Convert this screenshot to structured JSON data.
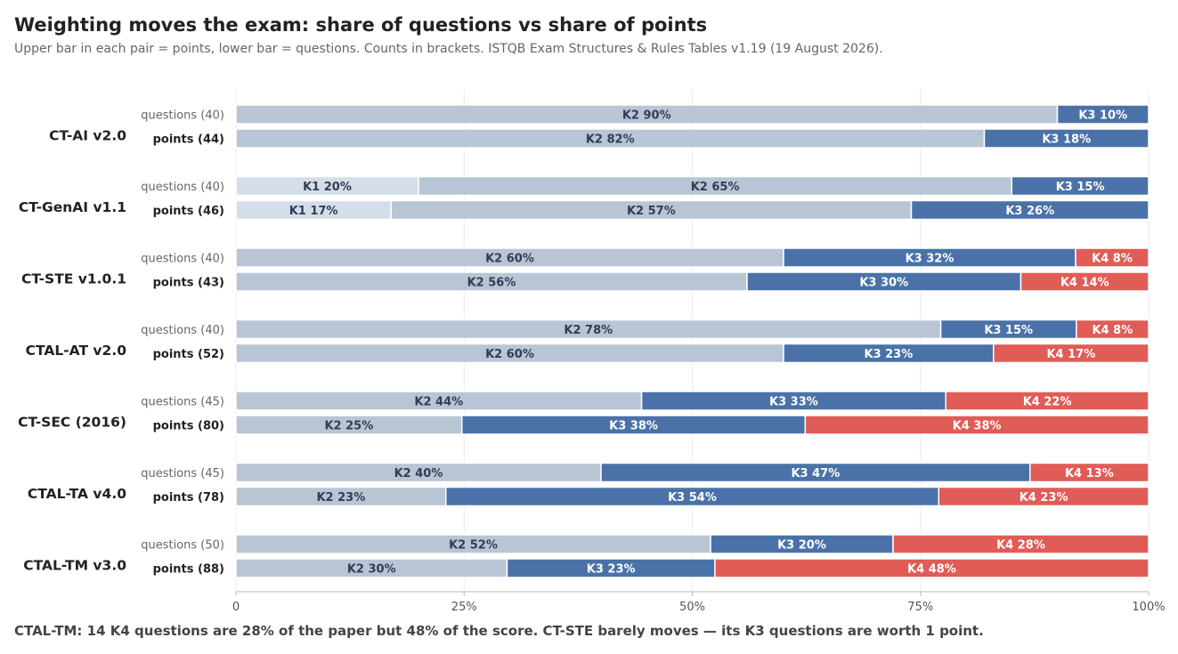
{
  "title": "Weighting moves the exam: share of questions vs share of points",
  "subtitle": "Upper bar in each pair = points, lower bar = questions. Counts in brackets. ISTQB Exam Structures & Rules Tables v1.19 (19 August 2026).",
  "footnote": "CTAL-TM: 14 K4 questions are 28% of the paper but 48% of the score. CT-STE barely moves — its K3 questions are worth 1 point.",
  "colors": {
    "K1": "#d5dde8",
    "K2": "#b8c5d4",
    "K3": "#4a72a8",
    "K4": "#e05c57"
  },
  "chart_data": {
    "type": "bar",
    "orientation": "horizontal",
    "stacked": true,
    "xlim": [
      0,
      100
    ],
    "xticks": [
      "0",
      "25%",
      "50%",
      "75%",
      "100%"
    ],
    "grid": true,
    "groups": [
      {
        "exam": "CT-AI v2.0",
        "rows": [
          {
            "label": "questions  (40)",
            "segments": [
              {
                "level": "K2",
                "value": 90
              },
              {
                "level": "K3",
                "value": 10
              }
            ]
          },
          {
            "label": "points  (44)",
            "segments": [
              {
                "level": "K2",
                "value": 82
              },
              {
                "level": "K3",
                "value": 18
              }
            ]
          }
        ]
      },
      {
        "exam": "CT-GenAI v1.1",
        "rows": [
          {
            "label": "questions  (40)",
            "segments": [
              {
                "level": "K1",
                "value": 20
              },
              {
                "level": "K2",
                "value": 65
              },
              {
                "level": "K3",
                "value": 15
              }
            ]
          },
          {
            "label": "points  (46)",
            "segments": [
              {
                "level": "K1",
                "value": 17
              },
              {
                "level": "K2",
                "value": 57
              },
              {
                "level": "K3",
                "value": 26
              }
            ]
          }
        ]
      },
      {
        "exam": "CT-STE v1.0.1",
        "rows": [
          {
            "label": "questions  (40)",
            "segments": [
              {
                "level": "K2",
                "value": 60
              },
              {
                "level": "K3",
                "value": 32
              },
              {
                "level": "K4",
                "value": 8
              }
            ]
          },
          {
            "label": "points  (43)",
            "segments": [
              {
                "level": "K2",
                "value": 56
              },
              {
                "level": "K3",
                "value": 30
              },
              {
                "level": "K4",
                "value": 14
              }
            ]
          }
        ]
      },
      {
        "exam": "CTAL-AT v2.0",
        "rows": [
          {
            "label": "questions  (40)",
            "segments": [
              {
                "level": "K2",
                "value": 78
              },
              {
                "level": "K3",
                "value": 15
              },
              {
                "level": "K4",
                "value": 8
              }
            ]
          },
          {
            "label": "points  (52)",
            "segments": [
              {
                "level": "K2",
                "value": 60
              },
              {
                "level": "K3",
                "value": 23
              },
              {
                "level": "K4",
                "value": 17
              }
            ]
          }
        ]
      },
      {
        "exam": "CT-SEC (2016)",
        "rows": [
          {
            "label": "questions  (45)",
            "segments": [
              {
                "level": "K2",
                "value": 44
              },
              {
                "level": "K3",
                "value": 33
              },
              {
                "level": "K4",
                "value": 22
              }
            ]
          },
          {
            "label": "points  (80)",
            "segments": [
              {
                "level": "K2",
                "value": 25
              },
              {
                "level": "K3",
                "value": 38
              },
              {
                "level": "K4",
                "value": 38
              }
            ]
          }
        ]
      },
      {
        "exam": "CTAL-TA v4.0",
        "rows": [
          {
            "label": "questions  (45)",
            "segments": [
              {
                "level": "K2",
                "value": 40
              },
              {
                "level": "K3",
                "value": 47
              },
              {
                "level": "K4",
                "value": 13
              }
            ]
          },
          {
            "label": "points  (78)",
            "segments": [
              {
                "level": "K2",
                "value": 23
              },
              {
                "level": "K3",
                "value": 54
              },
              {
                "level": "K4",
                "value": 23
              }
            ]
          }
        ]
      },
      {
        "exam": "CTAL-TM v3.0",
        "rows": [
          {
            "label": "questions  (50)",
            "segments": [
              {
                "level": "K2",
                "value": 52
              },
              {
                "level": "K3",
                "value": 20
              },
              {
                "level": "K4",
                "value": 28
              }
            ]
          },
          {
            "label": "points  (88)",
            "segments": [
              {
                "level": "K2",
                "value": 30
              },
              {
                "level": "K3",
                "value": 23
              },
              {
                "level": "K4",
                "value": 48
              }
            ]
          }
        ]
      }
    ]
  }
}
